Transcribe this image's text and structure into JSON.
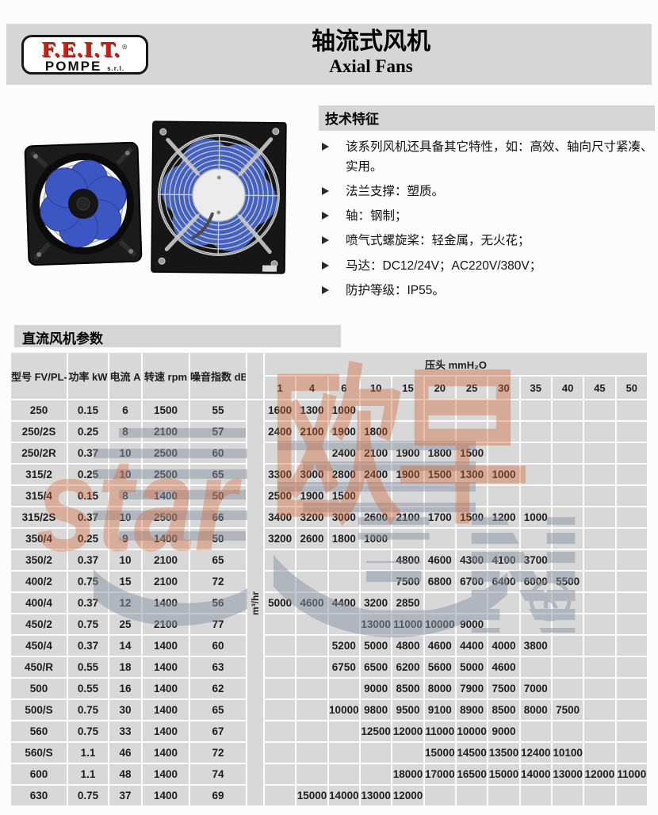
{
  "header": {
    "logo_text": "F.E.I.T.",
    "logo_reg": "®",
    "logo_sub": "POMPE",
    "logo_srl": "s.r.l.",
    "title_cn": "轴流式风机",
    "title_en": "Axial Fans"
  },
  "features": {
    "title": "技术特征",
    "bullet_icon": "triangle-right-icon",
    "items": [
      "该系列风机还具备其它特性，如：高效、轴向尺寸紧凑、实用。",
      "法兰支撑：塑质。",
      "轴：钢制；",
      "喷气式螺旋桨：轻金属，无火花；",
      "马达：DC12/24V；AC220V/380V；",
      "防护等级：IP55。"
    ]
  },
  "section_title": "直流风机参数",
  "table": {
    "col_headers": [
      "型号 FV/PL-",
      "功率 kW",
      "电流 A",
      "转速 rpm",
      "噪音指数 dB"
    ],
    "flow_unit": "m³/hr",
    "pressure_header": "压头 mmH₂O",
    "pressure_cols": [
      "1",
      "4",
      "6",
      "10",
      "15",
      "20",
      "25",
      "30",
      "35",
      "40",
      "45",
      "50"
    ],
    "rows": [
      {
        "model": "250",
        "power_kw": "0.15",
        "current_a": "6",
        "speed_rpm": "1500",
        "noise_db": "55",
        "flow": [
          "1600",
          "1300",
          "1000",
          "",
          "",
          "",
          "",
          "",
          "",
          "",
          "",
          ""
        ]
      },
      {
        "model": "250/2S",
        "power_kw": "0.25",
        "current_a": "8",
        "speed_rpm": "2100",
        "noise_db": "57",
        "flow": [
          "2400",
          "2100",
          "1900",
          "1800",
          "",
          "",
          "",
          "",
          "",
          "",
          "",
          ""
        ]
      },
      {
        "model": "250/2R",
        "power_kw": "0.37",
        "current_a": "10",
        "speed_rpm": "2500",
        "noise_db": "60",
        "flow": [
          "",
          "",
          "2400",
          "2100",
          "1900",
          "1800",
          "1500",
          "",
          "",
          "",
          "",
          ""
        ]
      },
      {
        "model": "315/2",
        "power_kw": "0.25",
        "current_a": "10",
        "speed_rpm": "2500",
        "noise_db": "65",
        "flow": [
          "3300",
          "3000",
          "2800",
          "2400",
          "1900",
          "1500",
          "1300",
          "1000",
          "",
          "",
          "",
          ""
        ]
      },
      {
        "model": "315/4",
        "power_kw": "0.15",
        "current_a": "8",
        "speed_rpm": "1400",
        "noise_db": "50",
        "flow": [
          "2500",
          "1900",
          "1500",
          "",
          "",
          "",
          "",
          "",
          "",
          "",
          "",
          ""
        ]
      },
      {
        "model": "315/2S",
        "power_kw": "0.37",
        "current_a": "10",
        "speed_rpm": "2500",
        "noise_db": "66",
        "flow": [
          "3400",
          "3200",
          "3000",
          "2600",
          "2100",
          "1700",
          "1500",
          "1200",
          "1000",
          "",
          "",
          ""
        ]
      },
      {
        "model": "350/4",
        "power_kw": "0.25",
        "current_a": "9",
        "speed_rpm": "1400",
        "noise_db": "50",
        "flow": [
          "3200",
          "2600",
          "1800",
          "1000",
          "",
          "",
          "",
          "",
          "",
          "",
          "",
          ""
        ]
      },
      {
        "model": "350/2",
        "power_kw": "0.37",
        "current_a": "10",
        "speed_rpm": "2100",
        "noise_db": "65",
        "flow": [
          "",
          "",
          "",
          "",
          "4800",
          "4600",
          "4300",
          "4100",
          "3700",
          "",
          "",
          ""
        ]
      },
      {
        "model": "400/2",
        "power_kw": "0.75",
        "current_a": "15",
        "speed_rpm": "2100",
        "noise_db": "72",
        "flow": [
          "",
          "",
          "",
          "",
          "7500",
          "6800",
          "6700",
          "6400",
          "6000",
          "5500",
          "",
          ""
        ]
      },
      {
        "model": "400/4",
        "power_kw": "0.37",
        "current_a": "12",
        "speed_rpm": "1400",
        "noise_db": "56",
        "flow": [
          "5000",
          "4600",
          "4400",
          "3200",
          "2850",
          "",
          "",
          "",
          "",
          "",
          "",
          ""
        ]
      },
      {
        "model": "450/2",
        "power_kw": "0.75",
        "current_a": "25",
        "speed_rpm": "2100",
        "noise_db": "77",
        "flow": [
          "",
          "",
          "",
          "13000",
          "11000",
          "10000",
          "9000",
          "",
          "",
          "",
          "",
          ""
        ]
      },
      {
        "model": "450/4",
        "power_kw": "0.37",
        "current_a": "14",
        "speed_rpm": "1400",
        "noise_db": "60",
        "flow": [
          "",
          "",
          "5200",
          "5000",
          "4800",
          "4600",
          "4400",
          "4000",
          "3800",
          "",
          "",
          ""
        ]
      },
      {
        "model": "450/R",
        "power_kw": "0.55",
        "current_a": "18",
        "speed_rpm": "1400",
        "noise_db": "63",
        "flow": [
          "",
          "",
          "6750",
          "6500",
          "6200",
          "5600",
          "5000",
          "4600",
          "",
          "",
          "",
          ""
        ]
      },
      {
        "model": "500",
        "power_kw": "0.55",
        "current_a": "16",
        "speed_rpm": "1400",
        "noise_db": "62",
        "flow": [
          "",
          "",
          "",
          "9000",
          "8500",
          "8000",
          "7900",
          "7500",
          "7000",
          "",
          "",
          ""
        ]
      },
      {
        "model": "500/S",
        "power_kw": "0.75",
        "current_a": "30",
        "speed_rpm": "1400",
        "noise_db": "65",
        "flow": [
          "",
          "",
          "10000",
          "9800",
          "9500",
          "9100",
          "8900",
          "8500",
          "8000",
          "7500",
          "",
          ""
        ]
      },
      {
        "model": "560",
        "power_kw": "0.75",
        "current_a": "33",
        "speed_rpm": "1400",
        "noise_db": "67",
        "flow": [
          "",
          "",
          "",
          "12500",
          "12000",
          "11000",
          "10000",
          "9000",
          "",
          "",
          "",
          ""
        ]
      },
      {
        "model": "560/S",
        "power_kw": "1.1",
        "current_a": "46",
        "speed_rpm": "1400",
        "noise_db": "72",
        "flow": [
          "",
          "",
          "",
          "",
          "",
          "15000",
          "14500",
          "13500",
          "12400",
          "10100",
          "",
          ""
        ]
      },
      {
        "model": "600",
        "power_kw": "1.1",
        "current_a": "48",
        "speed_rpm": "1400",
        "noise_db": "74",
        "flow": [
          "",
          "",
          "",
          "",
          "18000",
          "17000",
          "16500",
          "15000",
          "14000",
          "13000",
          "12000",
          "11000"
        ]
      },
      {
        "model": "630",
        "power_kw": "0.75",
        "current_a": "37",
        "speed_rpm": "1400",
        "noise_db": "69",
        "flow": [
          "",
          "15000",
          "14000",
          "13000",
          "12000",
          "",
          "",
          "",
          "",
          "",
          "",
          ""
        ]
      }
    ]
  },
  "watermark": {
    "cn": "欧早",
    "latin": "star",
    "reg": "R"
  },
  "colors": {
    "cell_gray": "#d8d8d8",
    "band_gray": "#d6d6d6",
    "logo_red": "#cf1f14",
    "watermark_orange": "#d26836",
    "watermark_gray": "#8b94a6"
  }
}
